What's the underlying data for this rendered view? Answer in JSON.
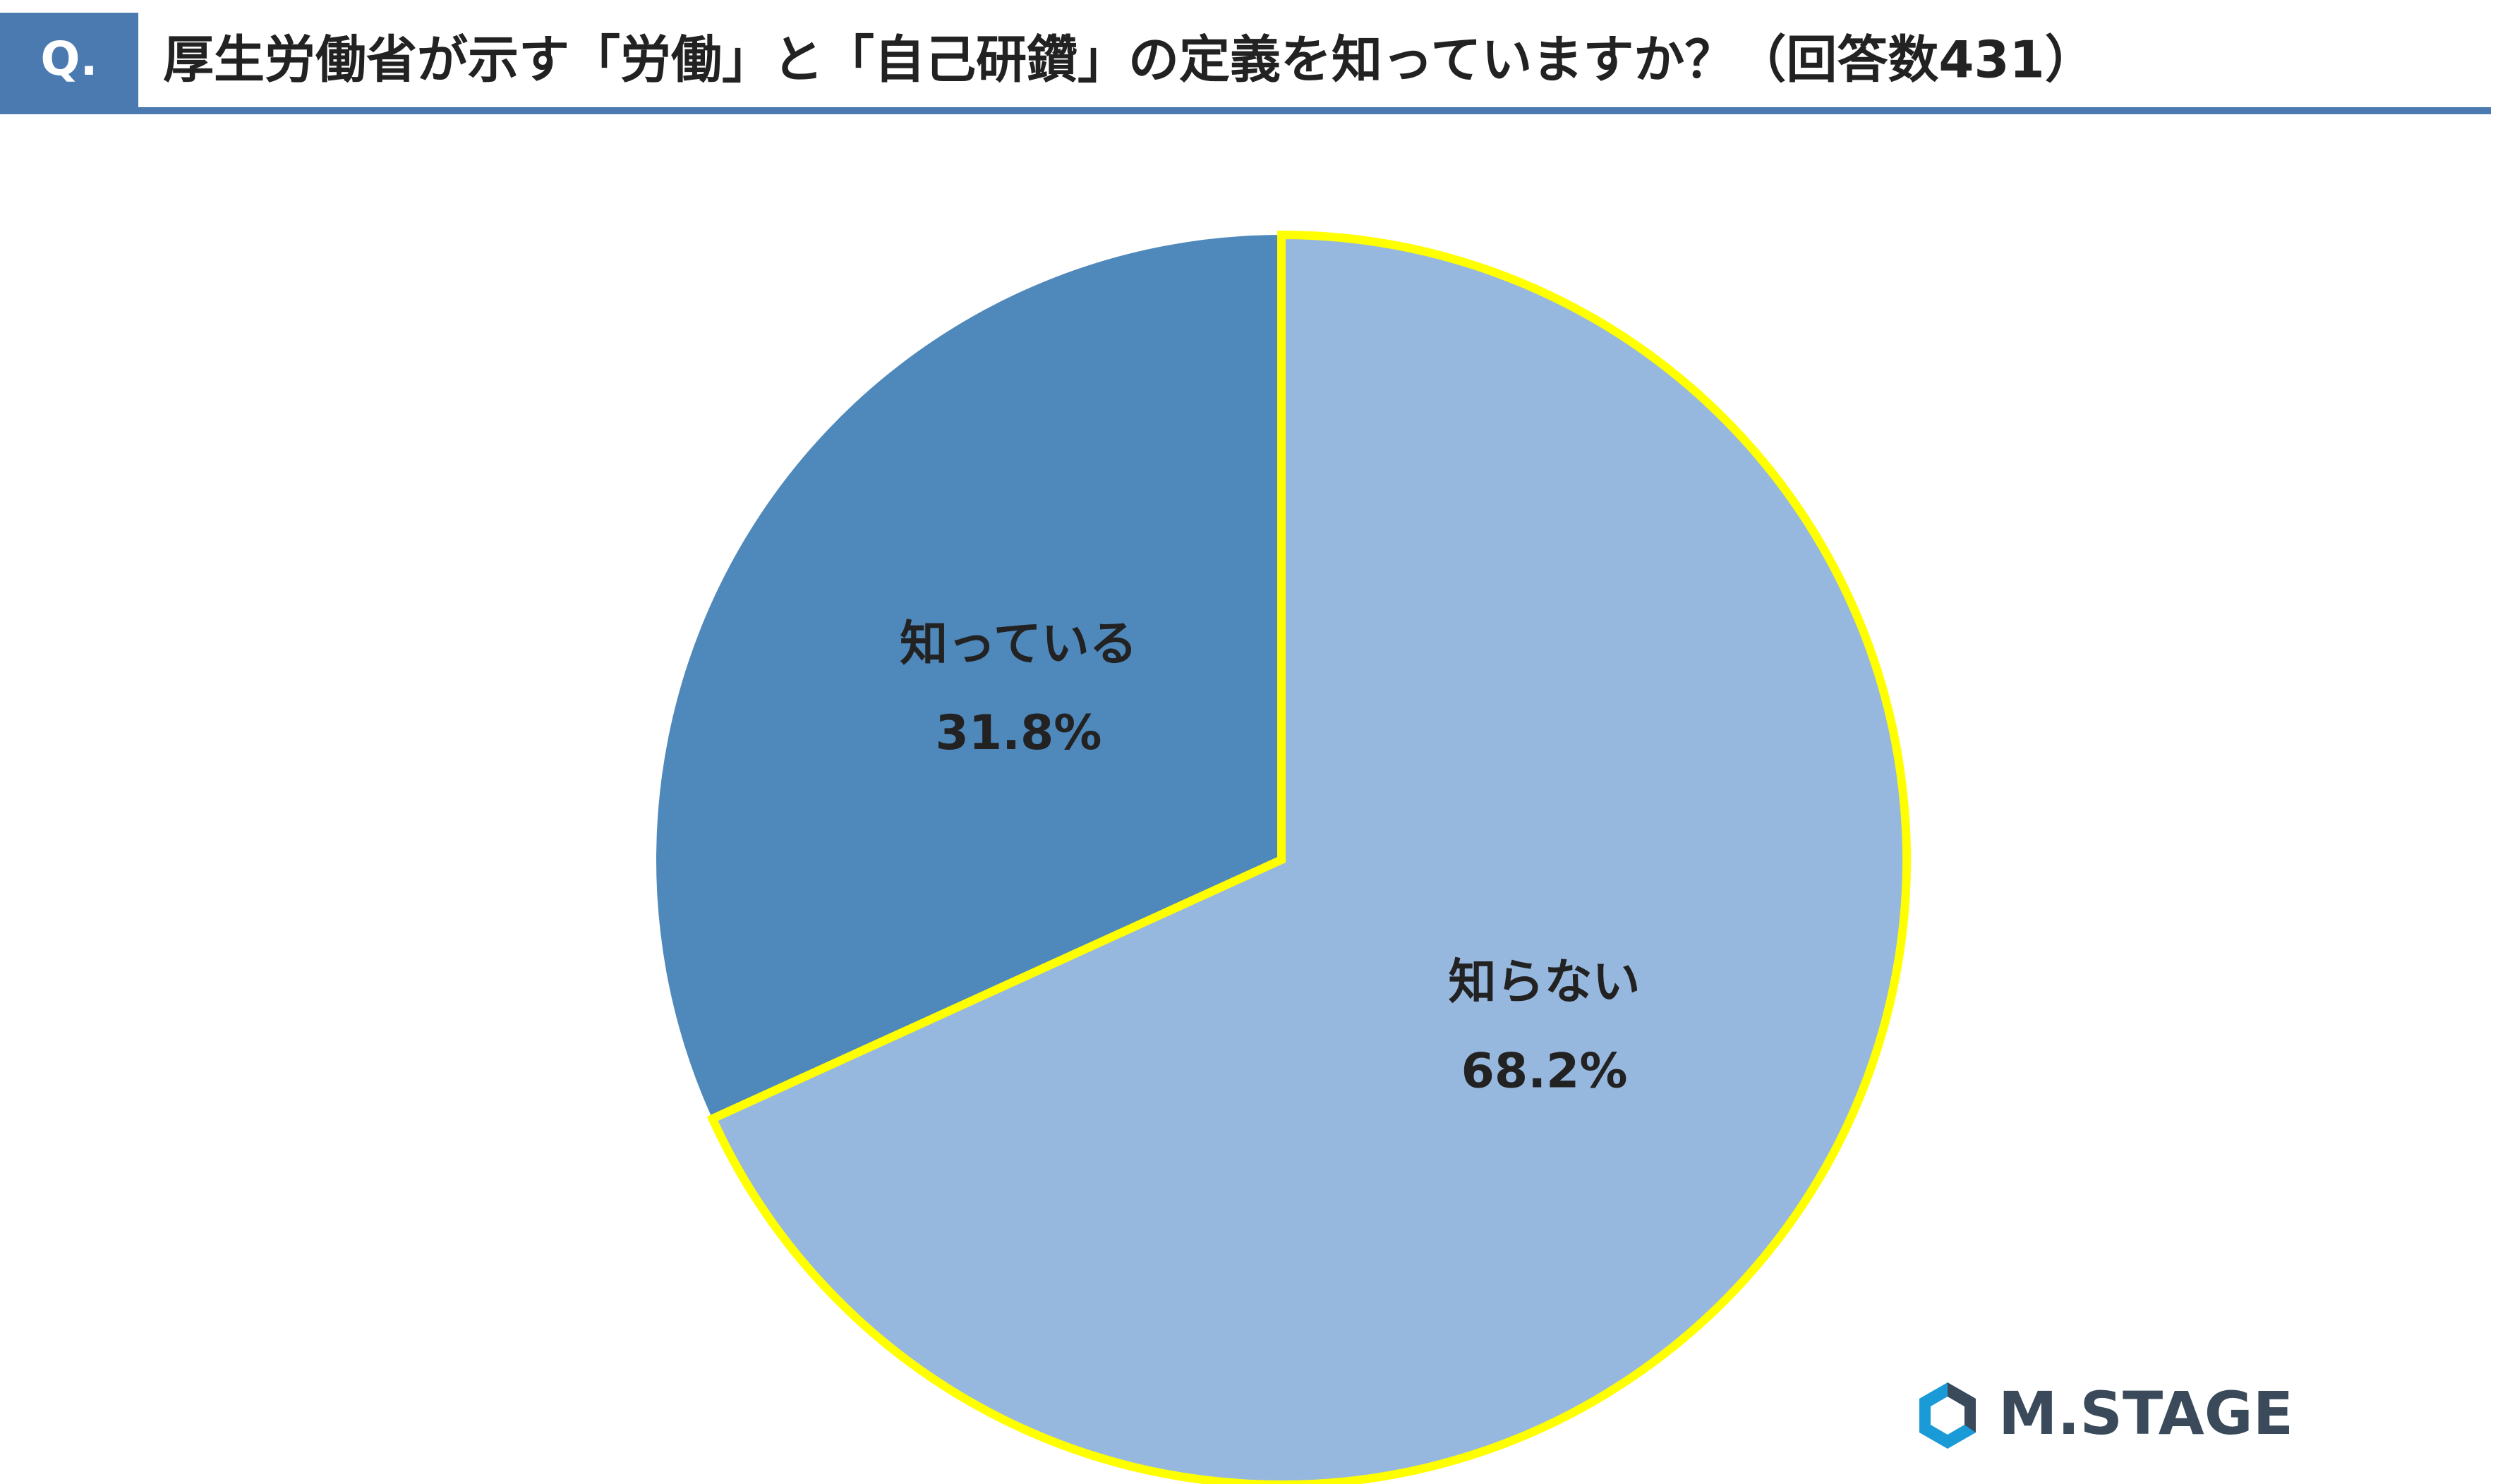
{
  "header": {
    "badge": "Q."
  },
  "logo": "M.STAGE",
  "chart_data": {
    "type": "pie",
    "title": "厚生労働省が示す「労働」と「自己研鑽」の定義を知っていますか？（回答数431）",
    "categories": [
      "知っている",
      "知らない"
    ],
    "values": [
      31.8,
      68.2
    ],
    "value_labels": [
      "31.8%",
      "68.2%"
    ],
    "colors": [
      "#4f88bb",
      "#97b8de"
    ],
    "edge_colors": [
      "none",
      "#ffff00"
    ]
  }
}
